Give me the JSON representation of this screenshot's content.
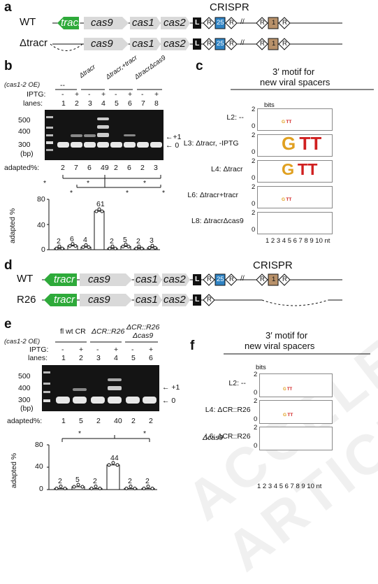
{
  "panels": {
    "a": "a",
    "b": "b",
    "c": "c",
    "d": "d",
    "e": "e",
    "f": "f"
  },
  "a": {
    "crispr_label": "CRISPR",
    "rows": [
      "WT",
      "Δtracr"
    ],
    "genes": {
      "tracr": "tracr",
      "cas9": "cas9",
      "cas1": "cas1",
      "cas2": "cas2"
    },
    "elements": {
      "L": "L",
      "R": "R",
      "spacer25": "25",
      "spacer1": "1",
      "break": "//"
    }
  },
  "b": {
    "header_oe": "(cas1-2 OE)",
    "groups": [
      "--",
      "Δtracr",
      "Δtracr,+tracr",
      "ΔtracrΔcas9"
    ],
    "iptg_label": "IPTG:",
    "iptg": [
      "-",
      "+",
      "-",
      "+",
      "-",
      "+",
      "-",
      "+"
    ],
    "lanes_label": "lanes:",
    "lanes": [
      "1",
      "2",
      "3",
      "4",
      "5",
      "6",
      "7",
      "8"
    ],
    "ladder": [
      "500",
      "400",
      "300",
      "(bp)"
    ],
    "arrows": [
      "←+1",
      "← 0"
    ],
    "adapted_label": "adapted%:",
    "adapted": [
      "2",
      "7",
      "6",
      "49",
      "2",
      "6",
      "2",
      "3"
    ],
    "bar_values": [
      "2",
      "6",
      "4",
      "61",
      "2",
      "5",
      "2",
      "3"
    ],
    "bar_numeric": [
      2,
      6,
      4,
      61,
      2,
      5,
      2,
      3
    ],
    "yaxis": [
      "80",
      "40",
      "0"
    ],
    "ylabel": "adapted %",
    "ymax": 80,
    "sig": "*"
  },
  "c": {
    "title1": "3′ motif for",
    "title2": "new viral spacers",
    "bits": "bits",
    "rows": [
      "L2: --",
      "L3: Δtracr, -IPTG",
      "L4: Δtracr",
      "L6: Δtracr+tracr",
      "L8: ΔtracrΔcas9"
    ],
    "axis": "1 2 3 4 5 6 7 8 9 10 nt",
    "ticks": [
      "2",
      "1",
      "0"
    ]
  },
  "d": {
    "crispr_label": "CRISPR",
    "rows": [
      "WT",
      "R26"
    ],
    "genes": {
      "tracr": "tracr",
      "cas9": "cas9",
      "cas1": "cas1",
      "cas2": "cas2"
    },
    "elements": {
      "L": "L",
      "R": "R",
      "spacer25": "25",
      "spacer1": "1",
      "break": "//"
    }
  },
  "e": {
    "header_oe": "(cas1-2 OE)",
    "groups": [
      "fl wt CR",
      "ΔCR::R26",
      "ΔCR::R26",
      "Δcas9"
    ],
    "iptg_label": "IPTG:",
    "iptg": [
      "-",
      "+",
      "-",
      "+",
      "-",
      "+"
    ],
    "lanes_label": "lanes:",
    "lanes": [
      "1",
      "2",
      "3",
      "4",
      "5",
      "6"
    ],
    "ladder": [
      "500",
      "400",
      "300",
      "(bp)"
    ],
    "arrows": [
      "← +1",
      "← 0"
    ],
    "adapted_label": "adapted%:",
    "adapted": [
      "1",
      "5",
      "2",
      "40",
      "2",
      "2"
    ],
    "bar_values": [
      "2",
      "5",
      "2",
      "44",
      "2",
      "2"
    ],
    "bar_numeric": [
      2,
      5,
      2,
      44,
      2,
      2
    ],
    "yaxis": [
      "80",
      "40",
      "0"
    ],
    "ylabel": "adapted %",
    "ymax": 80,
    "sig": "*"
  },
  "f": {
    "title1": "3′ motif for",
    "title2": "new viral spacers",
    "bits": "bits",
    "rows": [
      "L2: --",
      "L4: ΔCR::R26",
      "L6: ΔCR::R26",
      "Δcas9"
    ],
    "axis": "1 2 3 4 5 6 7 8 9 10 nt",
    "ticks": [
      "2",
      "1",
      "0"
    ]
  },
  "watermark": "ACCELERATED ARTICLE",
  "colors": {
    "tracr": "#2eaa3a",
    "gene": "#d9d9d9",
    "spacer25": "#2f83c3",
    "spacer1": "#b8916a",
    "logoG": "#e0a020",
    "logoT": "#d02020"
  }
}
